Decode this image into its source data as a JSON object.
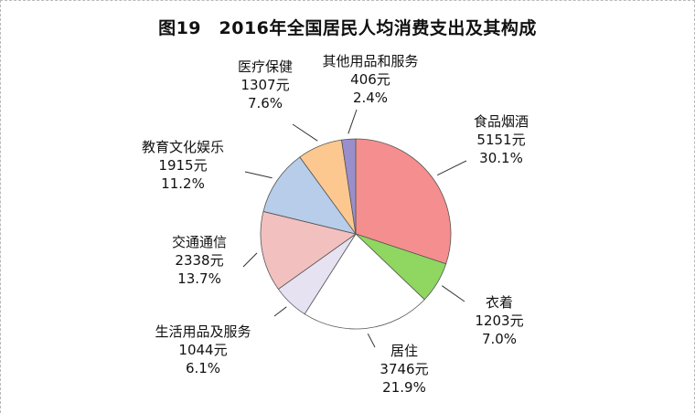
{
  "chart_data": {
    "type": "pie",
    "title": "图19　2016年全国居民人均消费支出及其构成",
    "slices": [
      {
        "name": "食品烟酒",
        "value_text": "5151元",
        "percent_text": "30.1%",
        "value": 5151,
        "percent": 30.1,
        "color": "#f58e8e"
      },
      {
        "name": "衣着",
        "value_text": "1203元",
        "percent_text": "7.0%",
        "value": 1203,
        "percent": 7.0,
        "color": "#8fd760"
      },
      {
        "name": "居住",
        "value_text": "3746元",
        "percent_text": "21.9%",
        "value": 3746,
        "percent": 21.9,
        "color": "#ffffff"
      },
      {
        "name": "生活用品及服务",
        "value_text": "1044元",
        "percent_text": "6.1%",
        "value": 1044,
        "percent": 6.1,
        "color": "#e6e2f2"
      },
      {
        "name": "交通通信",
        "value_text": "2338元",
        "percent_text": "13.7%",
        "value": 2338,
        "percent": 13.7,
        "color": "#f3c0c0"
      },
      {
        "name": "教育文化娱乐",
        "value_text": "1915元",
        "percent_text": "11.2%",
        "value": 1915,
        "percent": 11.2,
        "color": "#b7cde9"
      },
      {
        "name": "医疗保健",
        "value_text": "1307元",
        "percent_text": "7.6%",
        "value": 1307,
        "percent": 7.6,
        "color": "#fcc890"
      },
      {
        "name": "其他用品和服务",
        "value_text": "406元",
        "percent_text": "2.4%",
        "value": 406,
        "percent": 2.4,
        "color": "#9a8fca"
      }
    ]
  }
}
